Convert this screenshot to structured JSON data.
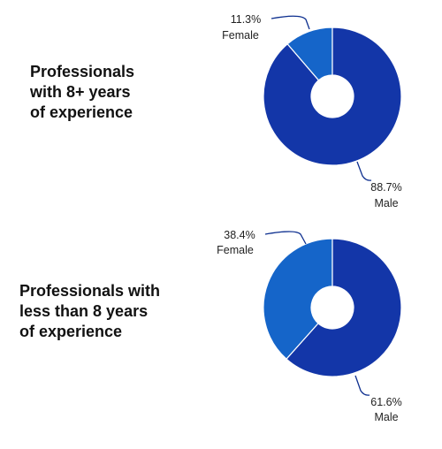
{
  "chart_data": [
    {
      "type": "pie",
      "variant": "donut",
      "title_lines": [
        "Professionals",
        "with 8+ years",
        "of experience"
      ],
      "slices": [
        {
          "label": "Female",
          "value": 11.3,
          "display": "11.3%",
          "color": "#1565C9"
        },
        {
          "label": "Male",
          "value": 88.7,
          "display": "88.7%",
          "color": "#1336A8"
        }
      ]
    },
    {
      "type": "pie",
      "variant": "donut",
      "title_lines": [
        "Professionals with",
        "less than 8 years",
        "of experience"
      ],
      "slices": [
        {
          "label": "Female",
          "value": 38.4,
          "display": "38.4%",
          "color": "#1565C9"
        },
        {
          "label": "Male",
          "value": 61.6,
          "display": "61.6%",
          "color": "#1336A8"
        }
      ]
    }
  ]
}
